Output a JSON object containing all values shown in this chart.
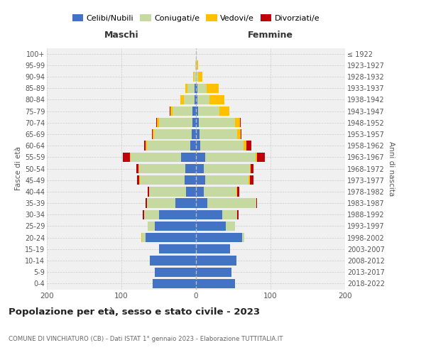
{
  "age_groups": [
    "0-4",
    "5-9",
    "10-14",
    "15-19",
    "20-24",
    "25-29",
    "30-34",
    "35-39",
    "40-44",
    "45-49",
    "50-54",
    "55-59",
    "60-64",
    "65-69",
    "70-74",
    "75-79",
    "80-84",
    "85-89",
    "90-94",
    "95-99",
    "100+"
  ],
  "birth_years": [
    "2018-2022",
    "2013-2017",
    "2008-2012",
    "2003-2007",
    "1998-2002",
    "1993-1997",
    "1988-1992",
    "1983-1987",
    "1978-1982",
    "1973-1977",
    "1968-1972",
    "1963-1967",
    "1958-1962",
    "1953-1957",
    "1948-1952",
    "1943-1947",
    "1938-1942",
    "1933-1937",
    "1928-1932",
    "1923-1927",
    "≤ 1922"
  ],
  "maschi": {
    "celibi": [
      58,
      55,
      62,
      50,
      68,
      55,
      50,
      28,
      13,
      15,
      14,
      20,
      8,
      6,
      5,
      5,
      2,
      2,
      0,
      0,
      0
    ],
    "coniugati": [
      0,
      0,
      0,
      0,
      4,
      10,
      20,
      38,
      50,
      60,
      62,
      68,
      58,
      50,
      45,
      26,
      14,
      9,
      3,
      1,
      0
    ],
    "vedovi": [
      0,
      0,
      0,
      0,
      1,
      0,
      0,
      0,
      0,
      1,
      1,
      1,
      2,
      2,
      2,
      3,
      5,
      3,
      1,
      0,
      0
    ],
    "divorziati": [
      0,
      0,
      0,
      0,
      0,
      0,
      1,
      2,
      2,
      3,
      3,
      9,
      2,
      1,
      1,
      1,
      0,
      0,
      0,
      0,
      0
    ]
  },
  "femmine": {
    "nubili": [
      52,
      48,
      54,
      46,
      62,
      40,
      35,
      15,
      10,
      12,
      10,
      12,
      6,
      5,
      4,
      3,
      2,
      2,
      0,
      0,
      0
    ],
    "coniugate": [
      0,
      0,
      0,
      0,
      3,
      12,
      20,
      66,
      44,
      58,
      62,
      68,
      58,
      50,
      48,
      28,
      16,
      12,
      3,
      1,
      0
    ],
    "vedove": [
      0,
      0,
      0,
      0,
      0,
      0,
      0,
      0,
      1,
      2,
      1,
      2,
      4,
      5,
      7,
      14,
      20,
      16,
      6,
      2,
      0
    ],
    "divorziate": [
      0,
      0,
      0,
      0,
      0,
      0,
      2,
      1,
      3,
      5,
      4,
      10,
      6,
      1,
      1,
      0,
      0,
      0,
      0,
      0,
      0
    ]
  },
  "colors": {
    "celibi": "#4472c4",
    "coniugati": "#c5d9a0",
    "vedovi": "#ffc000",
    "divorziati": "#c0000b"
  },
  "title": "Popolazione per età, sesso e stato civile - 2023",
  "subtitle": "COMUNE DI VINCHIATURO (CB) - Dati ISTAT 1° gennaio 2023 - Elaborazione TUTTITALIA.IT",
  "xlabel_left": "Maschi",
  "xlabel_right": "Femmine",
  "ylabel_left": "Fasce di età",
  "ylabel_right": "Anni di nascita",
  "xlim": 200,
  "legend_labels": [
    "Celibi/Nubili",
    "Coniugati/e",
    "Vedovi/e",
    "Divorziati/e"
  ],
  "bg_color": "#ffffff",
  "ax_bg_color": "#f0f0f0"
}
